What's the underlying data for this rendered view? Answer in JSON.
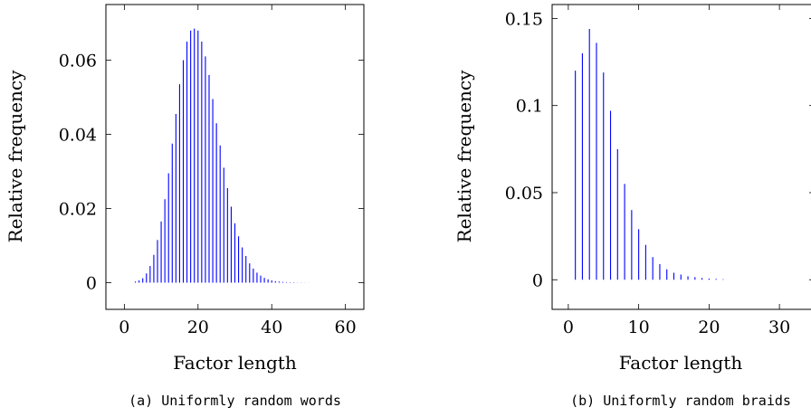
{
  "chart_data": [
    {
      "type": "bar",
      "caption": "(a) Uniformly random words",
      "xlabel": "Factor length",
      "ylabel": "Relative frequency",
      "xlim": [
        -5,
        65
      ],
      "ylim": [
        -0.0072,
        0.075
      ],
      "xticks": [
        0,
        20,
        40,
        60
      ],
      "yticks": [
        0,
        0.02,
        0.04,
        0.06
      ],
      "ytick_labels": [
        "0",
        "0.02",
        "0.04",
        "0.06"
      ],
      "bar_color": "#0000ff",
      "x": [
        3,
        4,
        5,
        6,
        7,
        8,
        9,
        10,
        11,
        12,
        13,
        14,
        15,
        16,
        17,
        18,
        19,
        20,
        21,
        22,
        23,
        24,
        25,
        26,
        27,
        28,
        29,
        30,
        31,
        32,
        33,
        34,
        35,
        36,
        37,
        38,
        39,
        40,
        41,
        42,
        43,
        44,
        45,
        46,
        47,
        48,
        49,
        50
      ],
      "values": [
        0.0003,
        0.0006,
        0.0012,
        0.0025,
        0.0045,
        0.0075,
        0.0115,
        0.0165,
        0.0225,
        0.0295,
        0.0375,
        0.0455,
        0.0535,
        0.06,
        0.065,
        0.068,
        0.0685,
        0.068,
        0.065,
        0.061,
        0.056,
        0.0495,
        0.043,
        0.037,
        0.031,
        0.0255,
        0.0205,
        0.016,
        0.0125,
        0.0095,
        0.0072,
        0.0052,
        0.0038,
        0.0027,
        0.0019,
        0.0013,
        0.0009,
        0.0006,
        0.0004,
        0.0003,
        0.0002,
        0.00015,
        0.0001,
        0.0001,
        5e-05,
        5e-05,
        3e-05,
        2e-05
      ]
    },
    {
      "type": "bar",
      "caption": "(b) Uniformly random braids",
      "xlabel": "Factor length",
      "ylabel": "Relative frequency",
      "xlim": [
        -2.3,
        35
      ],
      "ylim": [
        -0.017,
        0.158
      ],
      "xticks": [
        0,
        10,
        20,
        30
      ],
      "yticks": [
        0,
        0.05,
        0.1,
        0.15
      ],
      "ytick_labels": [
        "0",
        "0.05",
        "0.1",
        "0.15"
      ],
      "bar_color": "#0000ff",
      "x": [
        1,
        2,
        3,
        4,
        5,
        6,
        7,
        8,
        9,
        10,
        11,
        12,
        13,
        14,
        15,
        16,
        17,
        18,
        19,
        20,
        21,
        22
      ],
      "values": [
        0.12,
        0.13,
        0.144,
        0.136,
        0.119,
        0.097,
        0.075,
        0.055,
        0.04,
        0.029,
        0.02,
        0.013,
        0.009,
        0.006,
        0.004,
        0.003,
        0.002,
        0.0015,
        0.001,
        0.0007,
        0.0005,
        0.0003
      ]
    }
  ]
}
